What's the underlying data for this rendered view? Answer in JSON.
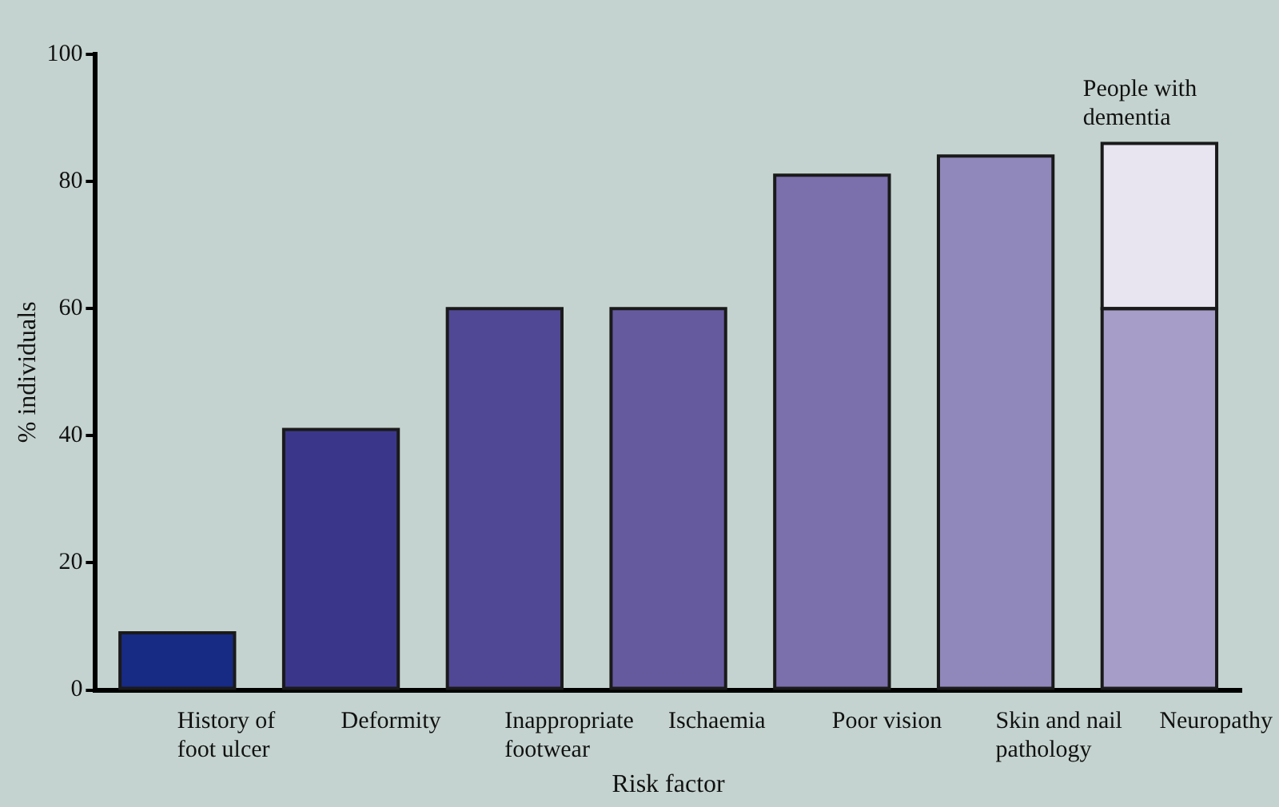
{
  "chart_data": {
    "type": "bar",
    "stacked": true,
    "xlabel": "Risk factor",
    "ylabel": "% individuals",
    "categories": [
      "History of foot ulcer",
      "Deformity",
      "Inappropriate footwear",
      "Ischaemia",
      "Poor vision",
      "Skin and nail pathology",
      "Neuropathy"
    ],
    "series": [
      {
        "colors": [
          "#172a84",
          "#3a378a",
          "#504895",
          "#665a9f",
          "#7b6fac",
          "#9087bb",
          "#a69dc8"
        ],
        "values": [
          9,
          41,
          60,
          60,
          81,
          84,
          60
        ]
      },
      {
        "color": "#e8e5f0",
        "values": [
          null,
          null,
          null,
          null,
          null,
          null,
          26
        ]
      }
    ],
    "ylim": [
      0,
      100
    ],
    "yticks": [
      0,
      20,
      40,
      60,
      80,
      100
    ],
    "grid": false,
    "legend": false,
    "annotations": [
      {
        "text": "People with dementia",
        "x": "Neuropathy",
        "y": 86
      }
    ]
  }
}
